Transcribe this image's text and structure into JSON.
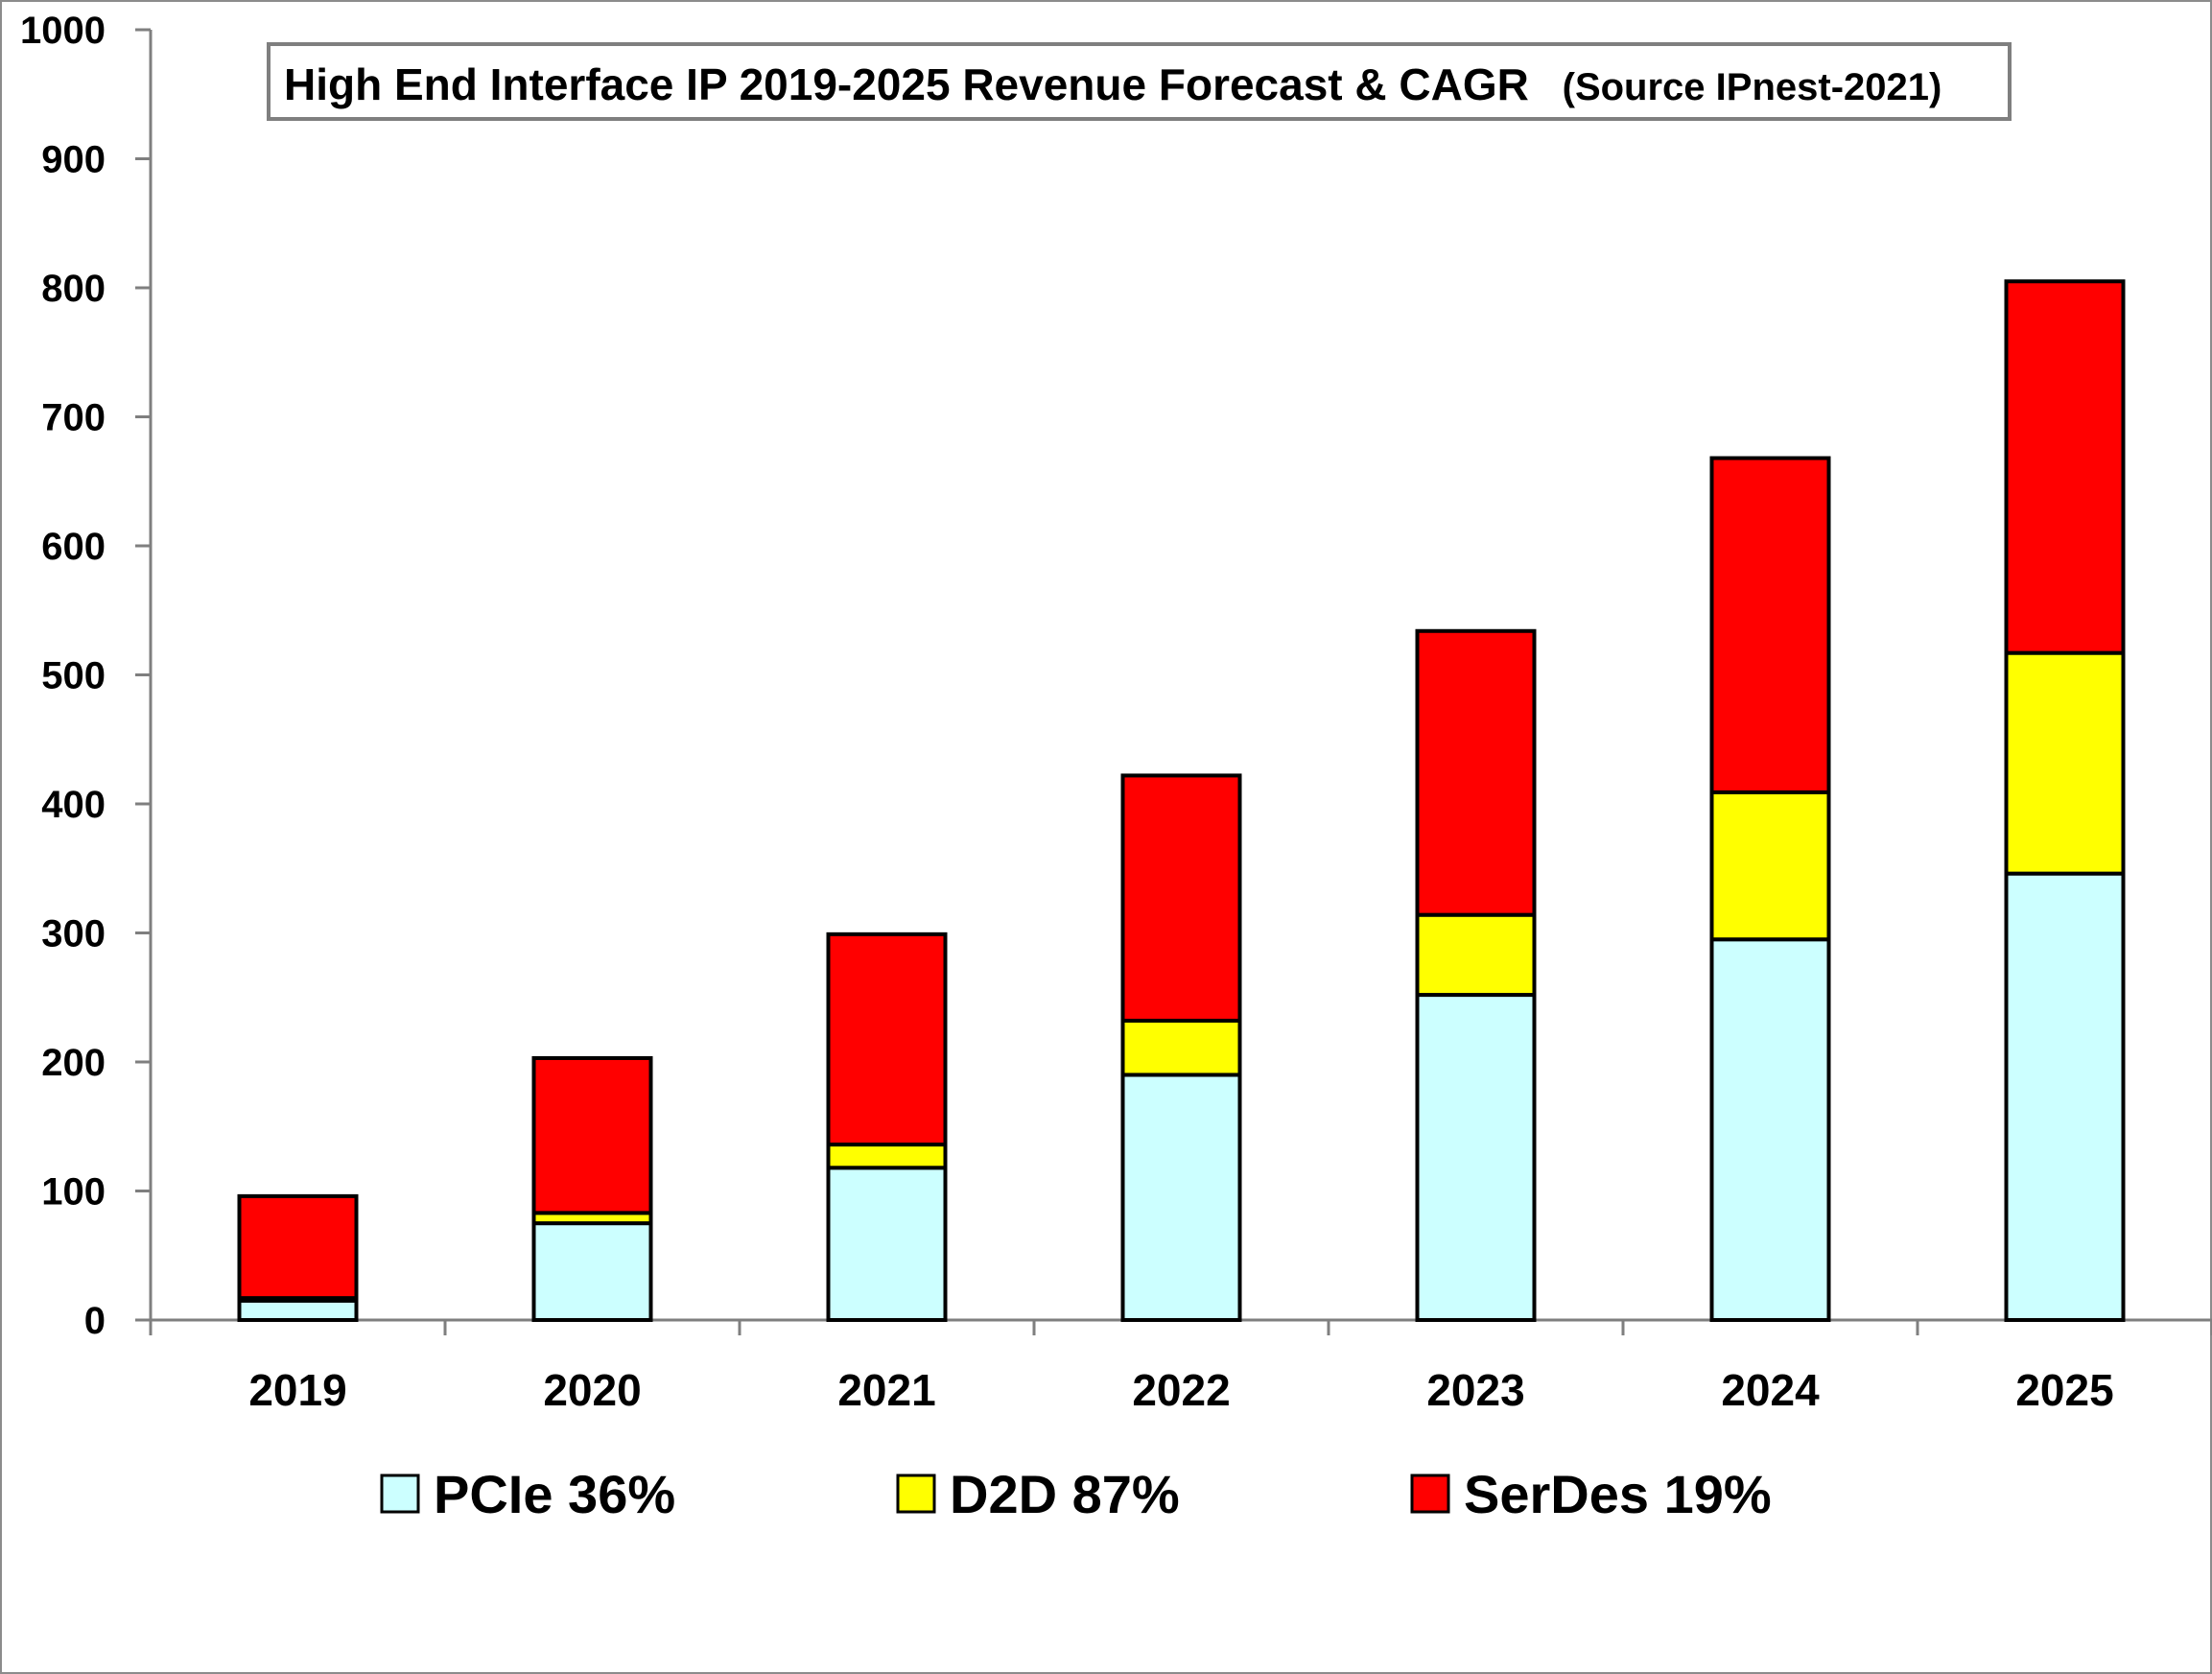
{
  "chart_data": {
    "type": "bar",
    "stacked": true,
    "title": "High End Interface IP 2019-2025 Revenue Forecast & CAGR",
    "title_source": "(Source IPnest-2021)",
    "categories": [
      "2019",
      "2020",
      "2021",
      "2022",
      "2023",
      "2024",
      "2025"
    ],
    "series": [
      {
        "name": "PCIe 36%",
        "color": "#ccffff",
        "values": [
          15,
          75,
          118,
          190,
          252,
          295,
          346
        ]
      },
      {
        "name": "D2D 87%",
        "color": "#ffff00",
        "values": [
          2,
          8,
          18,
          42,
          62,
          114,
          171
        ]
      },
      {
        "name": "SerDes 19%",
        "color": "#ff0000",
        "values": [
          79,
          120,
          163,
          190,
          220,
          259,
          288
        ]
      }
    ],
    "ylim": [
      0,
      1000
    ],
    "yticks": [
      "0",
      "100",
      "200",
      "300",
      "400",
      "500",
      "600",
      "700",
      "800",
      "900",
      "1000"
    ],
    "xlabel": "",
    "ylabel": "",
    "grid": false,
    "legend_position": "bottom"
  }
}
